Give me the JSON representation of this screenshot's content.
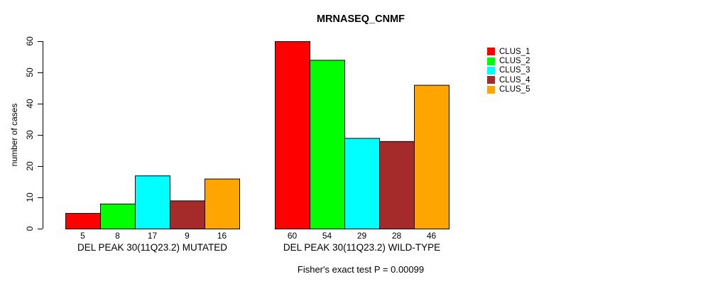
{
  "chart_data": {
    "type": "bar",
    "title": "MRNASEQ_CNMF",
    "ylabel": "number of cases",
    "xlabel": "",
    "footnote": "Fisher's exact test P = 0.00099",
    "ylim": [
      0,
      60
    ],
    "yticks": [
      0,
      10,
      20,
      30,
      40,
      50,
      60
    ],
    "grid": false,
    "legend_position": "right",
    "background_color": "#ffffff",
    "bar_border_color": "#000000",
    "categories": [
      "DEL PEAK 30(11Q23.2) MUTATED",
      "DEL PEAK 30(11Q23.2) WILD-TYPE"
    ],
    "series": [
      {
        "name": "CLUS_1",
        "color": "#FF0000",
        "values": [
          5,
          60
        ]
      },
      {
        "name": "CLUS_2",
        "color": "#00FF00",
        "values": [
          8,
          54
        ]
      },
      {
        "name": "CLUS_3",
        "color": "#00FFFF",
        "values": [
          17,
          29
        ]
      },
      {
        "name": "CLUS_4",
        "color": "#A52A2A",
        "values": [
          9,
          28
        ]
      },
      {
        "name": "CLUS_5",
        "color": "#FFA500",
        "values": [
          16,
          46
        ]
      }
    ],
    "bar_value_labels": {
      "DEL PEAK 30(11Q23.2) MUTATED": [
        5,
        8,
        17,
        9,
        16
      ],
      "DEL PEAK 30(11Q23.2) WILD-TYPE": [
        60,
        54,
        29,
        28,
        46
      ]
    },
    "legend_entries": [
      "CLUS_1",
      "CLUS_2",
      "CLUS_3",
      "CLUS_4",
      "CLUS_5"
    ]
  }
}
